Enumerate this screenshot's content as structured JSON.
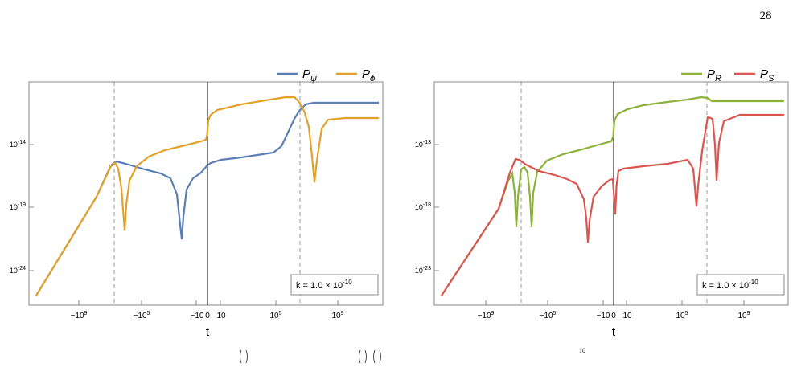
{
  "page_number": "28",
  "colors": {
    "psi": "#5b7fb5",
    "phi": "#e2a12a",
    "R": "#8cb23a",
    "S": "#d95750",
    "frame": "#8a8a8a",
    "dashed": "#9a9a9a"
  },
  "chart_data": [
    {
      "type": "line",
      "title": "",
      "xlabel": "t",
      "ylabel": "",
      "x_scale": "symmetric-log",
      "y_scale": "log",
      "x_tick_labels": [
        "-10^9",
        "-10^5",
        "-10",
        "0",
        "10",
        "10^5",
        "10^9"
      ],
      "y_tick_labels": [
        "10^-14",
        "10^-19",
        "10^-24"
      ],
      "legend_position": "top-right",
      "annotation": "k = 1.0×10^-10",
      "series": [
        {
          "name": "P_ψ",
          "color": "#5b7fb5",
          "x": [
            "-10^12",
            "-10^10",
            "-10^8",
            "-10^7",
            "-10^6",
            "-10^5",
            "-10^4",
            "-10^3",
            "-300",
            "-100",
            "-10",
            "-1",
            "0",
            "1",
            "10",
            "10^3",
            "10^5",
            "10^6",
            "10^7",
            "10^8",
            "10^9",
            "10^12"
          ],
          "y": [
            "1e-26",
            "1e-22",
            "1e-18",
            "1e-16",
            "3e-16",
            "2e-16",
            "1e-16",
            "5e-17",
            "1e-19",
            "3e-18",
            "1e-16",
            "4e-16",
            "1e-15",
            "2e-15",
            "3e-15",
            "5e-15",
            "1e-14",
            "3e-14",
            "1e-12",
            "1e-11",
            "1e-11",
            "1e-11"
          ]
        },
        {
          "name": "P_ϕ",
          "color": "#e2a12a",
          "x": [
            "-10^12",
            "-10^10",
            "-10^8",
            "-10^7",
            "-10^6",
            "-10^5.6",
            "-10^5",
            "-10^4",
            "-10^3",
            "-100",
            "-10",
            "-1",
            "0",
            "1",
            "10",
            "10^3",
            "10^5",
            "10^6",
            "10^7",
            "10^8",
            "10^9",
            "10^12"
          ],
          "y": [
            "1e-26",
            "1e-22",
            "1e-18",
            "1e-16",
            "1e-17",
            "1e-20",
            "1e-16",
            "3e-16",
            "1e-15",
            "2e-15",
            "3e-15",
            "5e-15",
            "1e-13",
            "3e-13",
            "5e-13",
            "1e-12",
            "3e-12",
            "5e-12",
            "1e-12",
            "1e-20",
            "3e-12",
            "3e-12"
          ]
        }
      ]
    },
    {
      "type": "line",
      "title": "",
      "xlabel": "t",
      "ylabel": "",
      "x_scale": "symmetric-log",
      "y_scale": "log",
      "x_tick_labels": [
        "-10^9",
        "-10^5",
        "-10",
        "0",
        "10",
        "10^5",
        "10^9"
      ],
      "y_tick_labels": [
        "10^-13",
        "10^-18",
        "10^-23"
      ],
      "legend_position": "top-right",
      "annotation": "k = 1.0×10^-10",
      "series": [
        {
          "name": "P_R",
          "color": "#8cb23a",
          "x": [
            "-10^12",
            "-10^10",
            "-10^8",
            "-10^7",
            "-10^6.5",
            "-10^6",
            "-10^5.5",
            "-10^5",
            "-10^4",
            "-10^3",
            "-100",
            "-10",
            "-1",
            "0",
            "1",
            "10",
            "10^3",
            "10^5",
            "10^6",
            "10^7",
            "10^8",
            "10^9",
            "10^12"
          ],
          "y": [
            "1e-25",
            "1e-21",
            "1e-17",
            "1e-16",
            "1e-20",
            "1e-16",
            "1e-20",
            "1e-16",
            "3e-15",
            "1e-14",
            "2e-14",
            "5e-14",
            "1e-13",
            "3e-11",
            "1e-10",
            "2e-10",
            "4e-10",
            "7e-10",
            "1e-9",
            "1e-9",
            "7e-10",
            "7e-10",
            "7e-10"
          ]
        },
        {
          "name": "P_S",
          "color": "#d95750",
          "x": [
            "-10^12",
            "-10^10",
            "-10^8",
            "-10^7",
            "-10^6",
            "-10^5",
            "-10^4",
            "-10^3",
            "-300",
            "-100",
            "-10",
            "-1",
            "0",
            "1",
            "10",
            "10^3",
            "10^5",
            "10^6",
            "10^7",
            "10^7.7",
            "10^8",
            "10^9",
            "10^12"
          ],
          "y": [
            "1e-25",
            "1e-21",
            "1e-17",
            "1e-15",
            "1e-15.5",
            "1e-16",
            "1e-16.5",
            "1e-17",
            "1e-20",
            "1e-18",
            "1e-16",
            "1e-15.5",
            "1e-18",
            "1e-15",
            "1e-15",
            "5e-15",
            "1e-14",
            "1e-13",
            "1e-11",
            "1e-18",
            "1e-11",
            "1e-11",
            "1e-11"
          ]
        }
      ]
    }
  ],
  "labels": {
    "left_legend": [
      "P_ψ",
      "P_ϕ"
    ],
    "right_legend": [
      "P_R",
      "P_S"
    ]
  }
}
